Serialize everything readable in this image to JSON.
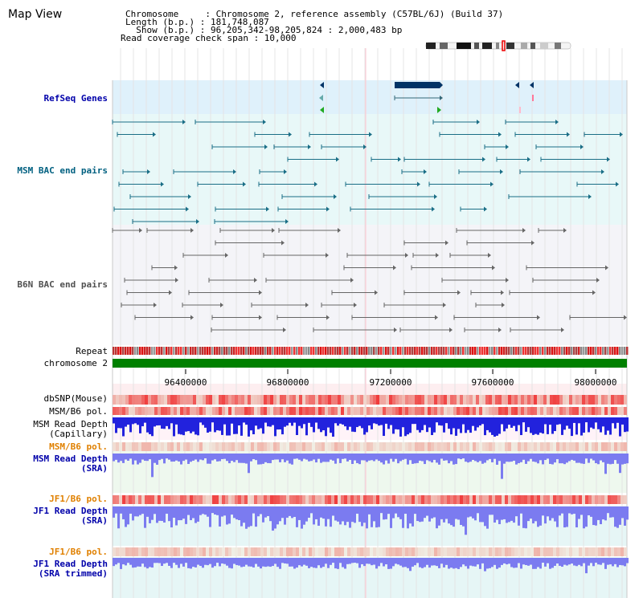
{
  "app": {
    "title": "Map View"
  },
  "header": {
    "chromosome_line": "Chromosome     : Chromosome 2, reference assembly (C57BL/6J) (Build 37)",
    "length_line": "Length (b.p.) : 181,748,087",
    "show_line": "  Show (b.p.) : 96,205,342-98,205,824 : 2,000,483 bp",
    "coverage_line": "Read coverage check span : 10,000"
  },
  "tracks": {
    "refseq_genes": "RefSeq Genes",
    "msm_bac": "MSM BAC end pairs",
    "b6n_bac": "B6N BAC end pairs",
    "repeat": "Repeat",
    "chromosome": "chromosome 2",
    "dbsnp": "dbSNP(Mouse)",
    "msm_b6_pol_1": "MSM/B6 pol.",
    "msm_read_depth_cap": "MSM Read Depth",
    "msm_read_depth_cap_sub": "(Capillary)",
    "msm_b6_pol_2": "MSM/B6 pol.",
    "msm_read_depth_sra": "MSM Read Depth",
    "msm_read_depth_sra_sub": "(SRA)",
    "jf1_b6_pol_1": "JF1/B6 pol.",
    "jf1_read_depth": "JF1 Read Depth",
    "jf1_read_depth_sub": "(SRA)",
    "jf1_b6_pol_2": "JF1/B6 pol.",
    "jf1_read_depth_trim": "JF1 Read Depth",
    "jf1_read_depth_trim_sub": "(SRA trimmed)"
  },
  "axis": {
    "ticks": [
      "96400000",
      "96800000",
      "97200000",
      "97600000",
      "98000000"
    ]
  },
  "colors": {
    "track_label_blue": "#0000aa",
    "track_label_teal": "#006080",
    "track_label_orange": "#e08000",
    "chromosome_bar": "#008000",
    "depth_capillary": "#2222dd",
    "depth_sra": "#7b7bf0"
  }
}
